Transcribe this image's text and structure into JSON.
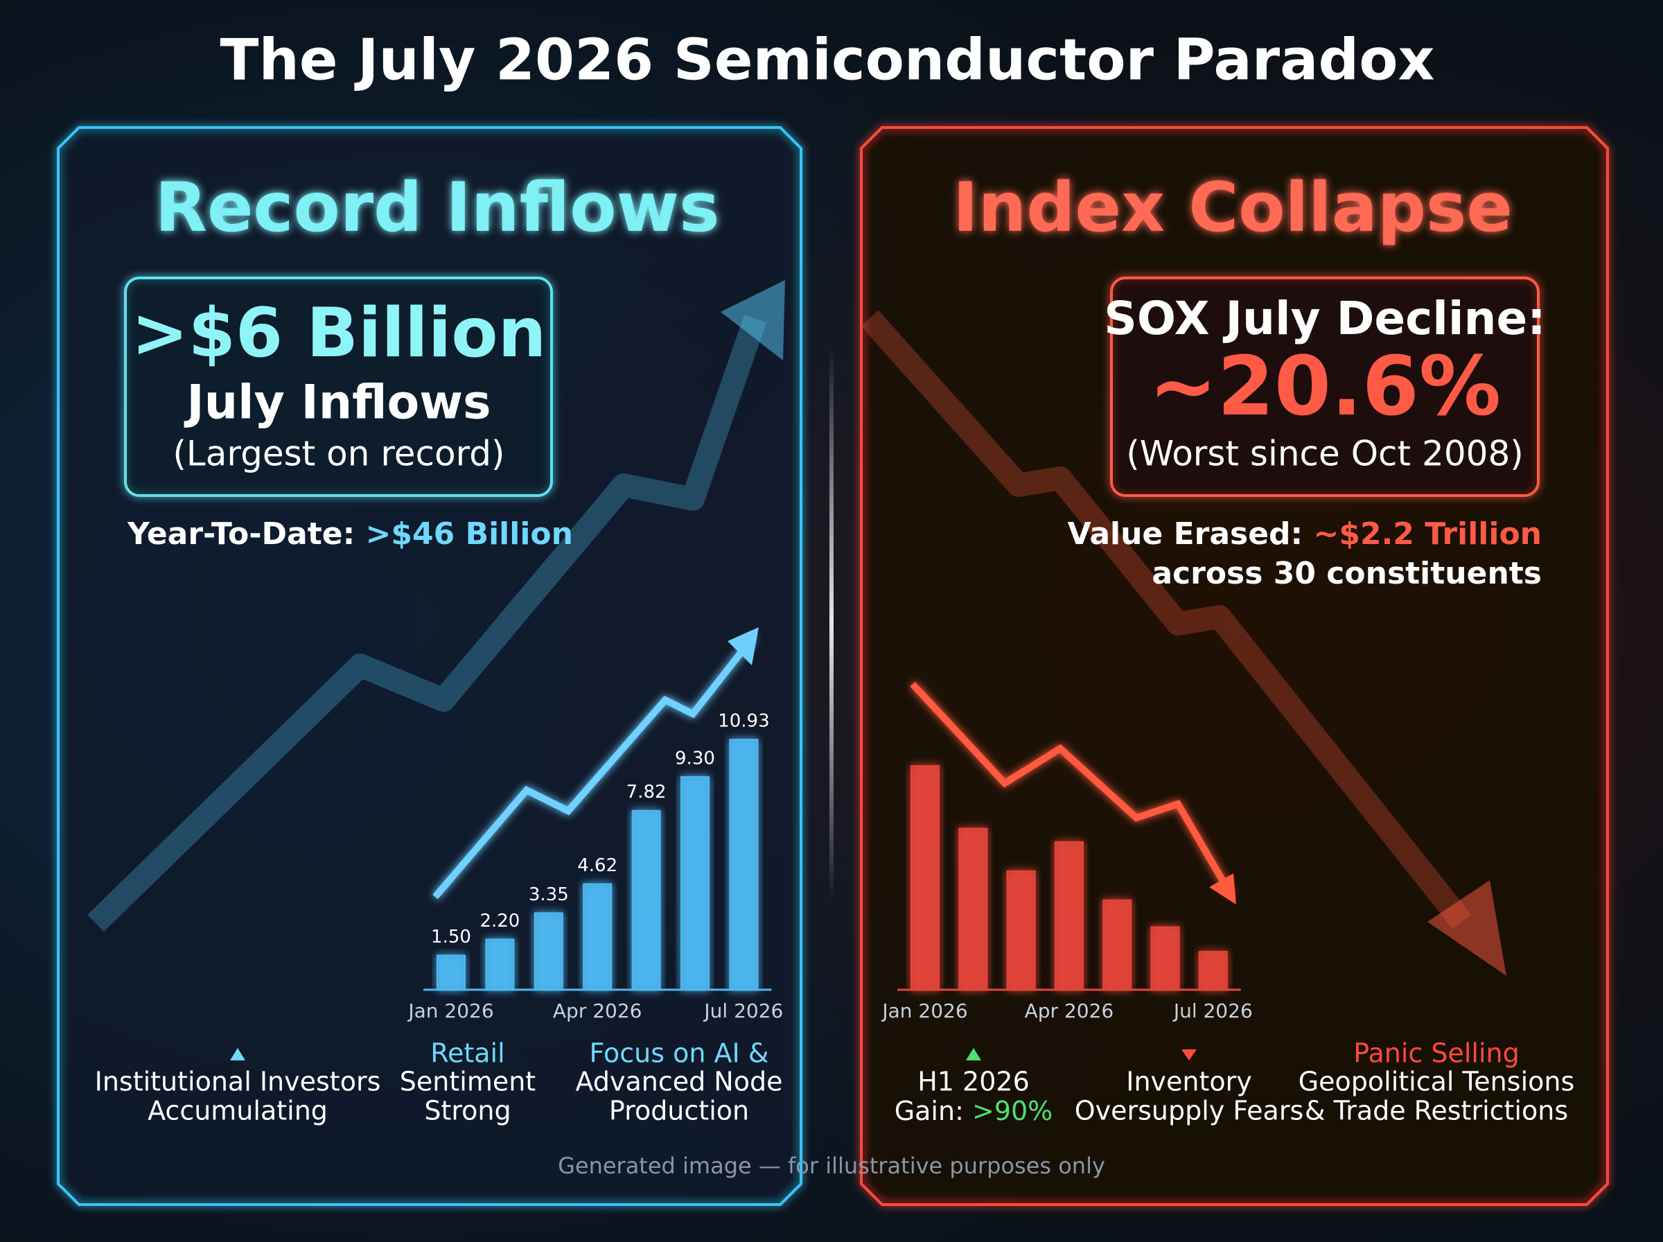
{
  "title": "The July 2026 Semiconductor Paradox",
  "footer": "Generated image — for illustrative purposes only",
  "left": {
    "heading": "Record Inflows",
    "callout": {
      "headline": ">$6 Billion",
      "subhead": "July Inflows",
      "note": "(Largest on record)"
    },
    "ytd_label": "Year-To-Date:",
    "ytd_value": ">$46 Billion",
    "notes": [
      {
        "lines": [
          "Institutional Investors",
          "Accumulating"
        ]
      },
      {
        "highlight": "Retail",
        "lines": [
          "Sentiment",
          "Strong"
        ]
      },
      {
        "highlight": "Focus on AI &",
        "lines": [
          "Advanced Node",
          "Production"
        ]
      }
    ]
  },
  "right": {
    "heading": "Index Collapse",
    "callout": {
      "headline": "SOX July Decline:",
      "subhead": "~20.6%",
      "note": "(Worst since Oct 2008)"
    },
    "erased_label": "Value Erased:",
    "erased_value": "~$2.2 Trillion",
    "erased_note": "across 30 constituents",
    "notes": [
      {
        "lines": [
          "H1 2026",
          "Gain:"
        ],
        "highlight": ">90%"
      },
      {
        "lines": [
          "Inventory",
          "Oversupply Fears"
        ]
      },
      {
        "highlight": "Panic Selling",
        "lines": [
          "Geopolitical Tensions",
          "& Trade Restrictions"
        ]
      }
    ]
  },
  "chart_data": [
    {
      "type": "bar",
      "categories": [
        "Jan 2026",
        null,
        null,
        "Apr 2026",
        null,
        null,
        "Jul 2026"
      ],
      "values": [
        1.5,
        2.2,
        3.35,
        4.62,
        7.82,
        9.3,
        10.93
      ],
      "value_labels": [
        "1.50",
        "2.20",
        "3.35",
        "4.62",
        "7.82",
        "9.30",
        "10.93"
      ],
      "color": "#4fb8f2"
    },
    {
      "type": "bar",
      "categories": [
        "Jan 2026",
        null,
        null,
        "Apr 2026",
        null,
        null,
        "Jul 2026"
      ],
      "values": [
        100,
        72,
        53,
        66,
        40,
        28,
        17
      ],
      "color": "#e5453a"
    }
  ]
}
